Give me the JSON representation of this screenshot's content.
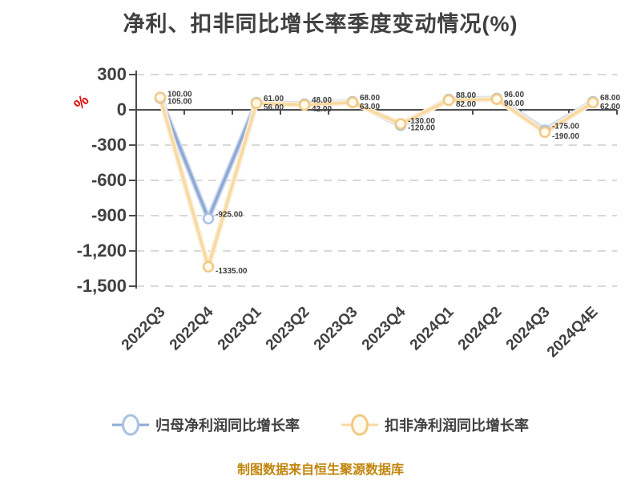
{
  "title": "净利、扣非同比增长率季度变动情况(%)",
  "footer": "制图数据来自恒生聚源数据库",
  "unit_label": "%",
  "colors": {
    "background": "#FFFFFF",
    "title_text": "#404040",
    "axis": "#4D4D4D",
    "tick_label": "#404040",
    "grid": "#D8D8D8",
    "unit_label": "#E00000",
    "data_label": "#3C3C3C",
    "footer_text": "#C1850B"
  },
  "chart_data": {
    "type": "line",
    "title": "净利、扣非同比增长率季度变动情况(%)",
    "categories": [
      "2022Q3",
      "2022Q4",
      "2023Q1",
      "2023Q2",
      "2023Q3",
      "2023Q4",
      "2024Q1",
      "2024Q2",
      "2024Q3",
      "2024Q4E"
    ],
    "series": [
      {
        "name": "归母净利润同比增长率",
        "line_color": "#8FA9D4",
        "halo_color": "#CBD9EF",
        "marker_stroke": "#A9C2E4",
        "marker_fill": "#FAFCFE",
        "values": [
          100,
          -925,
          61,
          48,
          68,
          -130,
          88,
          96,
          -175,
          68
        ]
      },
      {
        "name": "扣非净利润同比增长率",
        "line_color": "#F8D9A3",
        "halo_color": "#FCEFD7",
        "marker_stroke": "#F4C982",
        "marker_fill": "#FFFAEE",
        "values": [
          105,
          -1335,
          56,
          42,
          63,
          -120,
          82,
          90,
          -190,
          62
        ]
      }
    ],
    "ylabel": "%",
    "ylim": [
      -1500,
      300
    ],
    "yticks": [
      300,
      0,
      -300,
      -600,
      -900,
      -1200,
      -1500
    ],
    "ytick_labels": [
      "300",
      "0",
      "-300",
      "-600",
      "-900",
      "-1,200",
      "-1,500"
    ],
    "grid": "horizontal-dashed",
    "legend_position": "bottom",
    "data_labels": true
  }
}
